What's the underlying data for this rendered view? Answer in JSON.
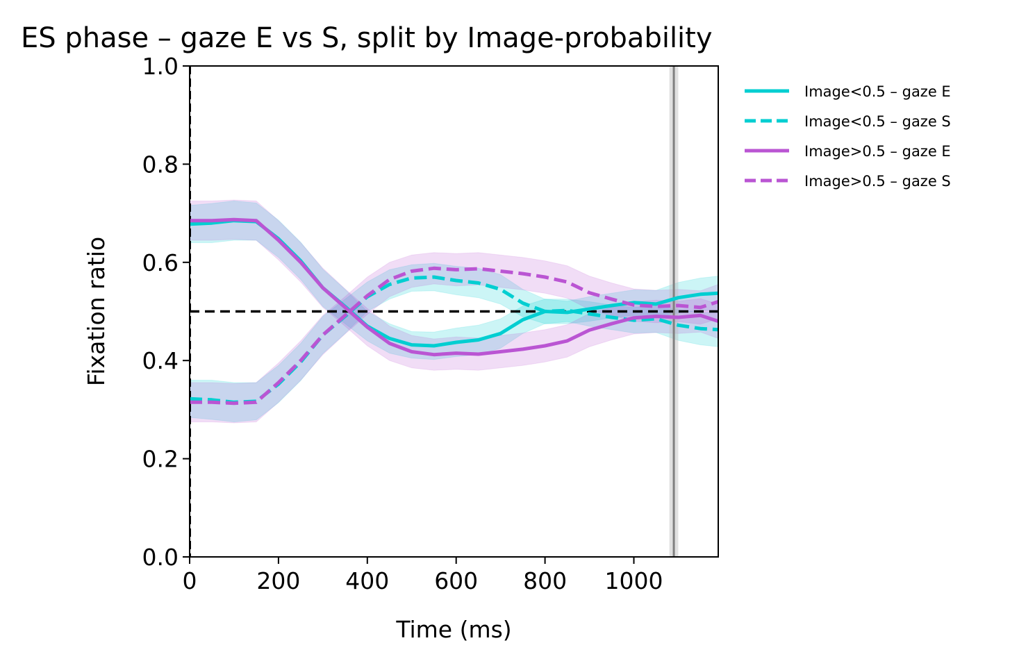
{
  "chart_data": {
    "type": "line",
    "title": "ES phase – gaze E vs S, split by Image-probability",
    "xlabel": "Time (ms)",
    "ylabel": "Fixation ratio",
    "xlim": [
      0,
      1190
    ],
    "ylim": [
      0,
      1.0
    ],
    "xticks": [
      0,
      200,
      400,
      600,
      800,
      1000
    ],
    "yticks": [
      0.0,
      0.2,
      0.4,
      0.6,
      0.8,
      1.0
    ],
    "xtick_labels": [
      "0",
      "200",
      "400",
      "600",
      "800",
      "1000"
    ],
    "ytick_labels": [
      "0.0",
      "0.2",
      "0.4",
      "0.6",
      "0.8",
      "1.0"
    ],
    "grid": false,
    "legend_position": "outside-top-right",
    "reference_lines": {
      "chance_level": 0.5,
      "vertical_marker_ms": 1090,
      "vertical_marker_band_ms": [
        1080,
        1100
      ],
      "onset_ms": 0
    },
    "x": [
      0,
      50,
      100,
      150,
      200,
      250,
      300,
      350,
      400,
      450,
      500,
      550,
      600,
      650,
      700,
      750,
      800,
      850,
      900,
      950,
      1000,
      1050,
      1100,
      1150,
      1190
    ],
    "series": [
      {
        "name": "Image<0.5 – gaze E",
        "color": "#00CED1",
        "linestyle": "solid",
        "values": [
          0.678,
          0.68,
          0.685,
          0.683,
          0.648,
          0.603,
          0.548,
          0.51,
          0.47,
          0.445,
          0.432,
          0.43,
          0.437,
          0.442,
          0.455,
          0.483,
          0.5,
          0.498,
          0.505,
          0.512,
          0.518,
          0.515,
          0.528,
          0.535,
          0.537
        ],
        "lower": [
          0.64,
          0.64,
          0.645,
          0.645,
          0.61,
          0.565,
          0.51,
          0.475,
          0.44,
          0.415,
          0.405,
          0.402,
          0.408,
          0.412,
          0.425,
          0.455,
          0.475,
          0.475,
          0.48,
          0.487,
          0.492,
          0.487,
          0.497,
          0.502,
          0.502
        ],
        "upper": [
          0.716,
          0.72,
          0.725,
          0.721,
          0.686,
          0.641,
          0.586,
          0.545,
          0.5,
          0.475,
          0.459,
          0.458,
          0.466,
          0.472,
          0.485,
          0.511,
          0.525,
          0.521,
          0.53,
          0.537,
          0.544,
          0.543,
          0.559,
          0.568,
          0.572
        ]
      },
      {
        "name": "Image<0.5 – gaze S",
        "color": "#00CED1",
        "linestyle": "dashed",
        "values": [
          0.322,
          0.32,
          0.315,
          0.317,
          0.352,
          0.397,
          0.452,
          0.49,
          0.53,
          0.555,
          0.568,
          0.57,
          0.563,
          0.558,
          0.545,
          0.517,
          0.5,
          0.502,
          0.495,
          0.488,
          0.482,
          0.485,
          0.472,
          0.465,
          0.463
        ],
        "lower": [
          0.284,
          0.28,
          0.275,
          0.279,
          0.314,
          0.359,
          0.414,
          0.455,
          0.5,
          0.525,
          0.541,
          0.542,
          0.534,
          0.528,
          0.515,
          0.489,
          0.475,
          0.479,
          0.47,
          0.463,
          0.456,
          0.457,
          0.441,
          0.432,
          0.428
        ],
        "upper": [
          0.36,
          0.36,
          0.355,
          0.355,
          0.39,
          0.435,
          0.49,
          0.525,
          0.56,
          0.585,
          0.595,
          0.598,
          0.592,
          0.588,
          0.575,
          0.545,
          0.525,
          0.525,
          0.52,
          0.513,
          0.508,
          0.513,
          0.503,
          0.498,
          0.498
        ]
      },
      {
        "name": "Image>0.5 – gaze E",
        "color": "#BA55D3",
        "linestyle": "solid",
        "values": [
          0.685,
          0.685,
          0.687,
          0.685,
          0.645,
          0.6,
          0.548,
          0.508,
          0.468,
          0.435,
          0.418,
          0.412,
          0.415,
          0.413,
          0.418,
          0.423,
          0.43,
          0.44,
          0.462,
          0.475,
          0.487,
          0.49,
          0.488,
          0.492,
          0.48
        ],
        "lower": [
          0.645,
          0.645,
          0.647,
          0.645,
          0.605,
          0.56,
          0.508,
          0.47,
          0.43,
          0.4,
          0.385,
          0.38,
          0.382,
          0.38,
          0.385,
          0.39,
          0.397,
          0.407,
          0.428,
          0.442,
          0.454,
          0.457,
          0.455,
          0.458,
          0.445
        ],
        "upper": [
          0.725,
          0.725,
          0.727,
          0.725,
          0.685,
          0.64,
          0.588,
          0.546,
          0.506,
          0.47,
          0.451,
          0.444,
          0.448,
          0.446,
          0.451,
          0.456,
          0.463,
          0.473,
          0.496,
          0.508,
          0.52,
          0.523,
          0.521,
          0.526,
          0.515
        ]
      },
      {
        "name": "Image>0.5 – gaze S",
        "color": "#BA55D3",
        "linestyle": "dashed",
        "values": [
          0.315,
          0.315,
          0.313,
          0.315,
          0.355,
          0.4,
          0.452,
          0.492,
          0.532,
          0.565,
          0.582,
          0.588,
          0.585,
          0.587,
          0.582,
          0.577,
          0.57,
          0.56,
          0.538,
          0.525,
          0.513,
          0.51,
          0.512,
          0.508,
          0.52
        ],
        "lower": [
          0.275,
          0.275,
          0.273,
          0.275,
          0.315,
          0.36,
          0.412,
          0.454,
          0.494,
          0.53,
          0.549,
          0.556,
          0.552,
          0.554,
          0.549,
          0.544,
          0.537,
          0.527,
          0.504,
          0.492,
          0.48,
          0.477,
          0.479,
          0.474,
          0.485
        ],
        "upper": [
          0.355,
          0.355,
          0.353,
          0.355,
          0.395,
          0.44,
          0.492,
          0.53,
          0.57,
          0.6,
          0.615,
          0.62,
          0.618,
          0.62,
          0.615,
          0.61,
          0.603,
          0.593,
          0.572,
          0.558,
          0.546,
          0.543,
          0.545,
          0.542,
          0.555
        ]
      }
    ]
  }
}
